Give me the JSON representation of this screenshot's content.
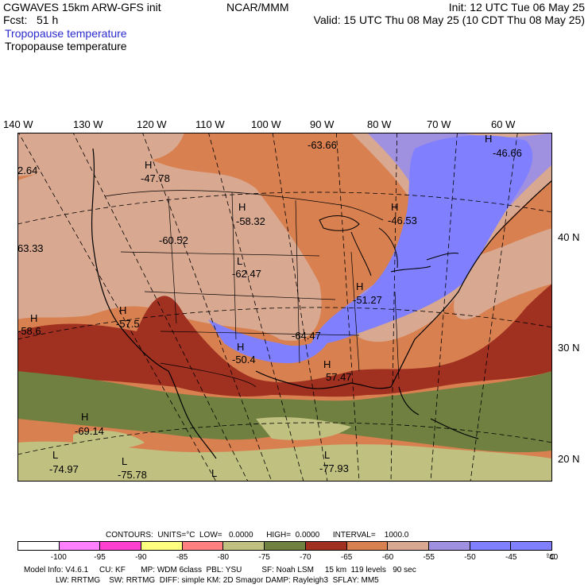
{
  "header": {
    "left_line1": "CGWAVES 15km ARW-GFS init",
    "left_line2": "Fcst:   51 h",
    "center_line1": "NCAR/MMM",
    "right_line1": "Init: 12 UTC Tue 06 May 25",
    "right_line2": "Valid: 15 UTC Thu 08 May 25 (10 CDT Thu 08 May 25)",
    "field_title_1": "Tropopause temperature",
    "field_title_2": "Tropopause temperature"
  },
  "longitudes": [
    "140 W",
    "130 W",
    "120 W",
    "110 W",
    "100 W",
    "90 W",
    "80 W",
    "70 W",
    "60 W"
  ],
  "latitudes": [
    "40 N",
    "30 N",
    "20 N"
  ],
  "map_labels": [
    {
      "id": "h1",
      "mark": "H",
      "value": "-47.78"
    },
    {
      "id": "v1",
      "mark": "",
      "value": "-63.66"
    },
    {
      "id": "h2",
      "mark": "H",
      "value": "-46.66"
    },
    {
      "id": "v2",
      "mark": "",
      "value": "2.64"
    },
    {
      "id": "h3",
      "mark": "H",
      "value": "-46.53"
    },
    {
      "id": "h4",
      "mark": "H",
      "value": "-58.32"
    },
    {
      "id": "v3",
      "mark": "",
      "value": "-60.52"
    },
    {
      "id": "v4",
      "mark": "",
      "value": "63.33"
    },
    {
      "id": "l1",
      "mark": "L",
      "value": "-62.47"
    },
    {
      "id": "h5",
      "mark": "H",
      "value": "-51.27"
    },
    {
      "id": "h6",
      "mark": "H",
      "value": "-57.5"
    },
    {
      "id": "h7",
      "mark": "H",
      "value": "-58.6"
    },
    {
      "id": "v5",
      "mark": "",
      "value": "-64.47"
    },
    {
      "id": "h8",
      "mark": "H",
      "value": "-50.4"
    },
    {
      "id": "h9",
      "mark": "H",
      "value": "57.47"
    },
    {
      "id": "h10",
      "mark": "H",
      "value": "-69.14"
    },
    {
      "id": "l2",
      "mark": "L",
      "value": "-74.97"
    },
    {
      "id": "l3",
      "mark": "L",
      "value": "-75.78"
    },
    {
      "id": "l4",
      "mark": "L",
      "value": "-77.93"
    },
    {
      "id": "l5",
      "mark": "L",
      "value": ""
    }
  ],
  "contours": {
    "text": "CONTOURS:  UNITS=°C  LOW=   0.0000      HIGH=  0.0000      INTERVAL=    1000.0"
  },
  "colorbar": {
    "colors": [
      "#ffffff",
      "#ff80ff",
      "#ff40d0",
      "#ffff80",
      "#ff8080",
      "#c0c080",
      "#708040",
      "#a03020",
      "#d88050",
      "#d8a890",
      "#a090e0",
      "#8080ff",
      "#8080ff"
    ],
    "labels": [
      "-100",
      "-95",
      "-90",
      "-85",
      "-80",
      "-75",
      "-70",
      "-65",
      "-60",
      "-55",
      "-50",
      "-45",
      "-40",
      "°C"
    ]
  },
  "footer": {
    "line1": "Model Info: V4.6.1     CU: KF       MP: WDM 6class  PBL: YSU         SF: Noah LSM     15 km  119 levels   90 sec",
    "line2": "LW: RRTMG    SW: RRTMG  DIFF: simple KM: 2D Smagor DAMP: Rayleigh3  SFLAY: MM5"
  }
}
